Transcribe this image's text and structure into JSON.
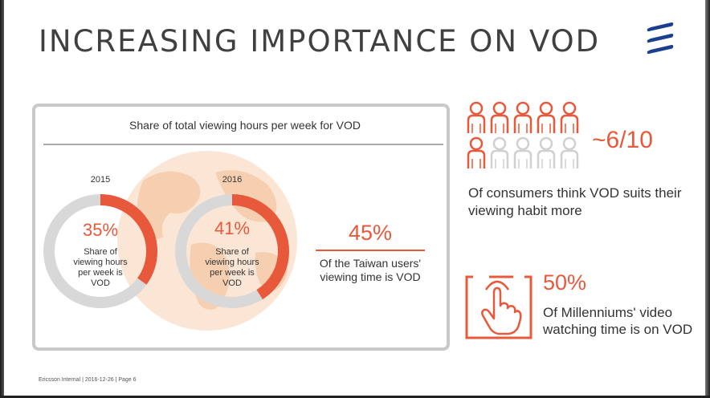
{
  "slide": {
    "title": "INCREASING IMPORTANCE ON VOD",
    "footer": "Ericsson Internal  |  2016-12-26  |  Page 6",
    "logo_icon": "ericsson-logo-icon"
  },
  "colors": {
    "accent": "#e8583a",
    "track": "#d8d8d8",
    "text": "#333333",
    "title": "#404040",
    "logo": "#1b3f8f",
    "globe": "#fbe6d6"
  },
  "chart_data": {
    "type": "pie",
    "title": "Share of total viewing hours per week for VOD",
    "series": [
      {
        "year": "2015",
        "percent_label": "35%",
        "value": 35,
        "label": "Share of viewing hours per week is VOD"
      },
      {
        "year": "2016",
        "percent_label": "41%",
        "value": 41,
        "label": "Share of viewing hours per week is VOD"
      }
    ]
  },
  "stats": {
    "taiwan": {
      "value": "45%",
      "label": "Of the Taiwan users' viewing time is VOD"
    },
    "consumers": {
      "value": "~6/10",
      "label": "Of consumers think VOD suits their viewing habit more",
      "filled": 6,
      "total": 10,
      "icon": "person-icon"
    },
    "millennials": {
      "value": "50%",
      "label": "Of Millenniums' video watching time is on VOD",
      "icon": "hand-tap-icon"
    }
  }
}
